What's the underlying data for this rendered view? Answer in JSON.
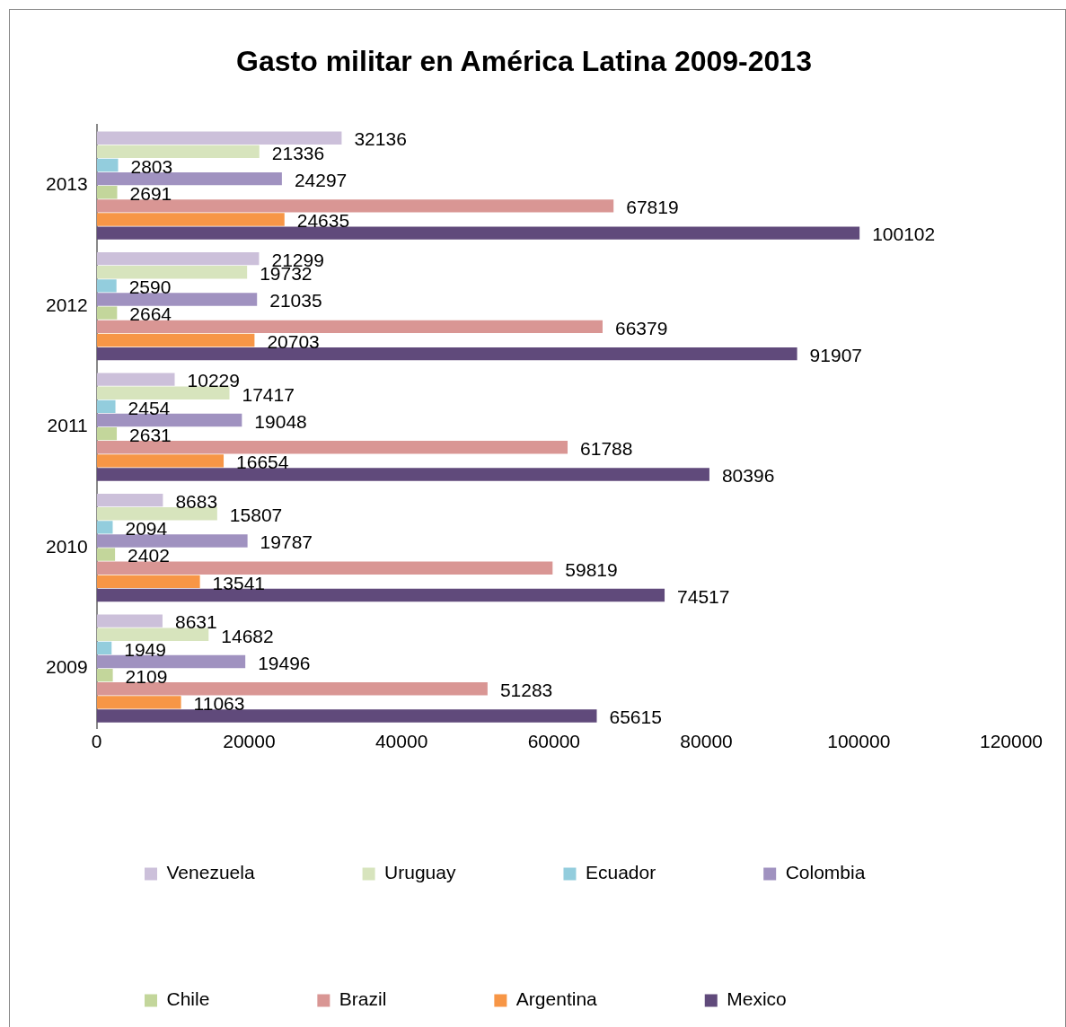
{
  "chart_data": {
    "type": "bar",
    "orientation": "horizontal",
    "title": "Gasto militar en América Latina 2009-2013",
    "categories": [
      "2013",
      "2012",
      "2011",
      "2010",
      "2009"
    ],
    "series": [
      {
        "name": "Venezuela",
        "color": "#ccc0da",
        "values": [
          32136,
          21299,
          10229,
          8683,
          8631
        ]
      },
      {
        "name": "Uruguay",
        "color": "#d7e4bd",
        "values": [
          21336,
          19732,
          17417,
          15807,
          14682
        ]
      },
      {
        "name": "Ecuador",
        "color": "#93cddd",
        "values": [
          2803,
          2590,
          2454,
          2094,
          1949
        ]
      },
      {
        "name": "Colombia",
        "color": "#a092c0",
        "values": [
          24297,
          21035,
          19048,
          19787,
          19496
        ]
      },
      {
        "name": "Chile",
        "color": "#c3d69b",
        "values": [
          2691,
          2664,
          2631,
          2402,
          2109
        ]
      },
      {
        "name": "Brazil",
        "color": "#d99694",
        "values": [
          67819,
          66379,
          61788,
          59819,
          51283
        ]
      },
      {
        "name": "Argentina",
        "color": "#f79646",
        "values": [
          24635,
          20703,
          16654,
          13541,
          11063
        ]
      },
      {
        "name": "Mexico",
        "color": "#604a7b",
        "values": [
          100102,
          91907,
          80396,
          74517,
          65615
        ]
      }
    ],
    "xlim": [
      0,
      120000
    ],
    "xticks": [
      0,
      20000,
      40000,
      60000,
      80000,
      100000,
      120000
    ],
    "grid": false,
    "legend": "bottom",
    "data_labels": true
  }
}
